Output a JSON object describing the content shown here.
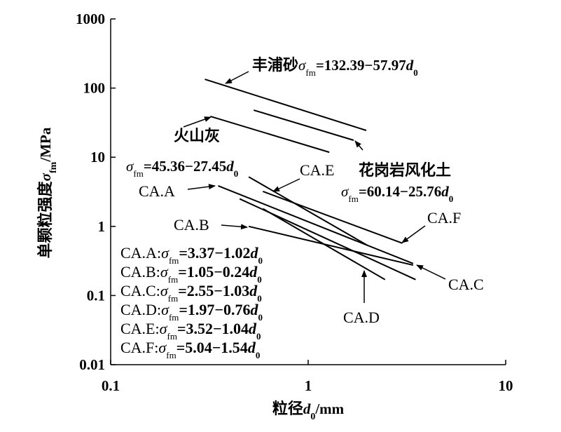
{
  "chart_data": {
    "type": "line",
    "log_x": true,
    "log_y": true,
    "color": "#000000",
    "xlim": [
      0.1,
      10
    ],
    "xticks": [
      0.1,
      1,
      10
    ],
    "ylim": [
      0.01,
      1000
    ],
    "yticks": [
      0.01,
      0.1,
      1,
      10,
      100,
      1000
    ],
    "x_label": {
      "text": "粒径",
      "symbol": "d",
      "sub": "0",
      "unit": "/mm"
    },
    "y_label": {
      "text": "单颗粒强度",
      "symbol": "σ",
      "sub": "fm",
      "unit": "/MPa"
    },
    "legend_separator": ":",
    "series": [
      {
        "name": "丰浦砂",
        "x": [
          0.3,
          1.97
        ],
        "values": [
          134,
          24.4
        ],
        "formula": {
          "symbol": "σ",
          "sub": "fm",
          "expr": "=132.39−57.97",
          "var": "d",
          "var_sub": "0"
        }
      },
      {
        "name": "花岗岩风化土",
        "x": [
          0.53,
          1.7
        ],
        "values": [
          48,
          17.6
        ],
        "formula": {
          "symbol": "σ",
          "sub": "fm",
          "expr": "=60.14−25.76",
          "var": "d",
          "var_sub": "0"
        }
      },
      {
        "name": "火山灰",
        "x": [
          0.32,
          1.28
        ],
        "values": [
          39,
          11.8
        ],
        "formula": {
          "symbol": "σ",
          "sub": "fm",
          "expr": "=45.36−27.45",
          "var": "d",
          "var_sub": "0"
        }
      },
      {
        "name": "CA.A",
        "x": [
          0.35,
          3.4
        ],
        "values": [
          3.86,
          0.29
        ],
        "formula": {
          "symbol": "σ",
          "sub": "fm",
          "expr": "=3.37−1.02",
          "var": "d",
          "var_sub": "0"
        }
      },
      {
        "name": "CA.B",
        "x": [
          0.5,
          3.4
        ],
        "values": [
          1.0,
          0.275
        ],
        "formula": {
          "symbol": "σ",
          "sub": "fm",
          "expr": "=1.05−0.24",
          "var": "d",
          "var_sub": "0"
        }
      },
      {
        "name": "CA.C",
        "x": [
          0.45,
          3.5
        ],
        "values": [
          2.5,
          0.17
        ],
        "formula": {
          "symbol": "σ",
          "sub": "fm",
          "expr": "=2.55−1.03",
          "var": "d",
          "var_sub": "0"
        }
      },
      {
        "name": "CA.D",
        "x": [
          0.59,
          2.45
        ],
        "values": [
          1.8,
          0.17
        ],
        "formula": {
          "symbol": "σ",
          "sub": "fm",
          "expr": "=1.97−0.76",
          "var": "d",
          "var_sub": "0"
        }
      },
      {
        "name": "CA.E",
        "x": [
          0.5,
          2.0
        ],
        "values": [
          5.2,
          0.53
        ],
        "formula": {
          "symbol": "σ",
          "sub": "fm",
          "expr": "=3.52−1.04",
          "var": "d",
          "var_sub": "0"
        }
      },
      {
        "name": "CA.F",
        "x": [
          0.59,
          3.0
        ],
        "values": [
          3.2,
          0.57
        ],
        "formula": {
          "symbol": "σ",
          "sub": "fm",
          "expr": "=5.04−1.54",
          "var": "d",
          "var_sub": "0"
        }
      }
    ]
  }
}
